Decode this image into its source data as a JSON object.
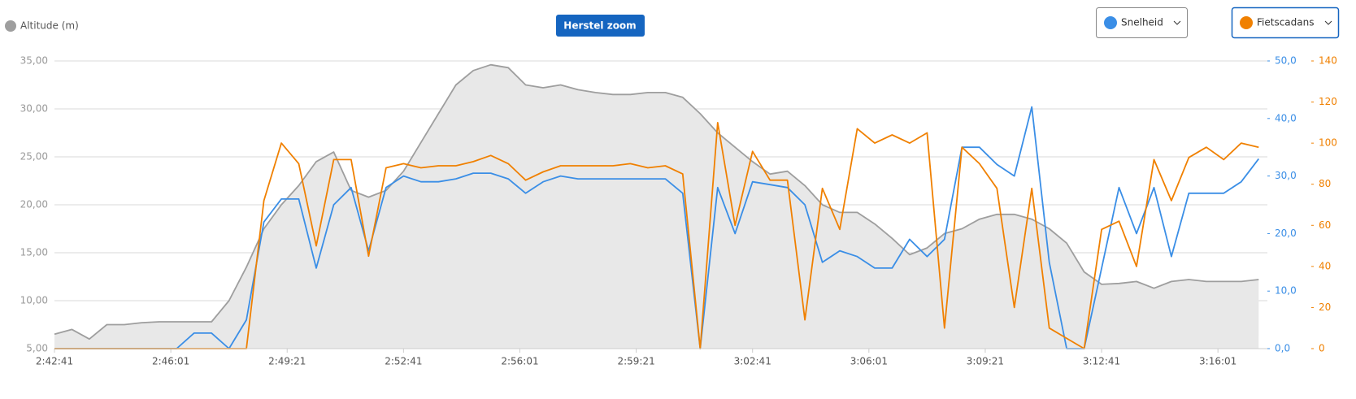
{
  "chart_data": {
    "type": "line",
    "legend_title": "Altitude (m)",
    "reset_zoom": "Herstel zoom",
    "x": [
      "2:42:41",
      "2:43:11",
      "2:43:41",
      "2:44:11",
      "2:44:41",
      "2:45:11",
      "2:45:41",
      "2:46:11",
      "2:46:41",
      "2:47:11",
      "2:47:41",
      "2:48:11",
      "2:48:41",
      "2:49:11",
      "2:49:41",
      "2:50:11",
      "2:50:41",
      "2:51:11",
      "2:51:41",
      "2:52:11",
      "2:52:41",
      "2:53:11",
      "2:53:41",
      "2:54:11",
      "2:54:41",
      "2:55:11",
      "2:55:41",
      "2:56:11",
      "2:56:41",
      "2:57:11",
      "2:57:41",
      "2:58:11",
      "2:58:41",
      "2:59:11",
      "2:59:41",
      "3:00:11",
      "3:00:41",
      "3:01:11",
      "3:01:41",
      "3:02:11",
      "3:02:41",
      "3:03:11",
      "3:03:41",
      "3:04:11",
      "3:04:41",
      "3:05:11",
      "3:05:41",
      "3:06:11",
      "3:06:41",
      "3:07:11",
      "3:07:41",
      "3:08:11",
      "3:08:41",
      "3:09:11",
      "3:09:41",
      "3:10:11",
      "3:10:41",
      "3:11:11",
      "3:11:41",
      "3:12:11",
      "3:12:41",
      "3:13:11",
      "3:13:41",
      "3:14:11",
      "3:14:41",
      "3:15:11",
      "3:15:41",
      "3:16:11",
      "3:16:41",
      "3:17:11"
    ],
    "xlim": [
      "2:42:41",
      "3:17:26"
    ],
    "xticks": [
      "2:42:41",
      "2:46:01",
      "2:49:21",
      "2:52:41",
      "2:56:01",
      "2:59:21",
      "3:02:41",
      "3:06:01",
      "3:09:21",
      "3:12:41",
      "3:16:01"
    ],
    "ylim": [
      5,
      35
    ],
    "yticks": [
      {
        "value": 5,
        "label": "5,00"
      },
      {
        "value": 10,
        "label": "10,00"
      },
      {
        "value": 15,
        "label": "15,00"
      },
      {
        "value": 20,
        "label": "20,00"
      },
      {
        "value": 25,
        "label": "25,00"
      },
      {
        "value": 30,
        "label": "30,00"
      },
      {
        "value": 35,
        "label": "35,00"
      }
    ],
    "y2lim": [
      0,
      50
    ],
    "y2ticks": [
      {
        "value": 0,
        "label": "0,0"
      },
      {
        "value": 10,
        "label": "10,0"
      },
      {
        "value": 20,
        "label": "20,0"
      },
      {
        "value": 30,
        "label": "30,0"
      },
      {
        "value": 40,
        "label": "40,0"
      },
      {
        "value": 50,
        "label": "50,0"
      }
    ],
    "y3lim": [
      0,
      140
    ],
    "y3ticks": [
      0,
      20,
      40,
      60,
      80,
      100,
      120,
      140
    ],
    "grid": true,
    "series": [
      {
        "name": "Altitude (m)",
        "color": "#9e9e9e",
        "fill": "#e8e8e8",
        "axis": "y",
        "values": [
          6.5,
          7,
          6,
          7.5,
          7.5,
          7.7,
          7.8,
          7.8,
          7.8,
          7.8,
          10,
          13.5,
          17.5,
          20,
          22,
          24.5,
          25.5,
          21.5,
          20.8,
          21.5,
          23.5,
          26.5,
          29.5,
          32.5,
          34,
          34.6,
          34.3,
          32.5,
          32.2,
          32.5,
          32,
          31.7,
          31.5,
          31.5,
          31.7,
          31.7,
          31.2,
          29.5,
          27.5,
          26,
          24.5,
          23.2,
          23.5,
          22,
          20,
          19.2,
          19.2,
          18,
          16.5,
          14.8,
          15.5,
          17,
          17.5,
          18.5,
          19,
          19,
          18.5,
          17.5,
          16,
          13,
          11.7,
          11.8,
          12,
          11.3,
          12,
          12.2,
          12,
          12,
          12,
          12.2
        ]
      },
      {
        "name": "Snelheid",
        "color": "#3a8ee6",
        "axis": "y2",
        "values": [
          0,
          0,
          0,
          0,
          0,
          0,
          0,
          0,
          2.7,
          2.7,
          0,
          5,
          22,
          26,
          26,
          14,
          25,
          28,
          17,
          28,
          30,
          29,
          29,
          29.5,
          30.5,
          30.5,
          29.5,
          27,
          29,
          30,
          29.5,
          29.5,
          29.5,
          29.5,
          29.5,
          29.5,
          27,
          0,
          28,
          20,
          29,
          28.5,
          28,
          25,
          15,
          17,
          16,
          14,
          14,
          19,
          16,
          19,
          35,
          35,
          32,
          30,
          42,
          15,
          0,
          0,
          14,
          28,
          20,
          28,
          16,
          27,
          27,
          27,
          29,
          33
        ]
      },
      {
        "name": "Fietscadans",
        "color": "#f08000",
        "axis": "y3",
        "values": [
          0,
          0,
          0,
          0,
          0,
          0,
          0,
          0,
          0,
          0,
          0,
          0,
          72,
          100,
          90,
          50,
          92,
          92,
          45,
          88,
          90,
          88,
          89,
          89,
          91,
          94,
          90,
          82,
          86,
          89,
          89,
          89,
          89,
          90,
          88,
          89,
          85,
          0,
          110,
          60,
          96,
          82,
          82,
          14,
          78,
          58,
          107,
          100,
          104,
          100,
          105,
          10,
          98,
          90,
          78,
          20,
          78,
          10,
          5,
          0,
          58,
          62,
          40,
          92,
          72,
          93,
          98,
          92,
          100,
          98
        ]
      }
    ]
  }
}
